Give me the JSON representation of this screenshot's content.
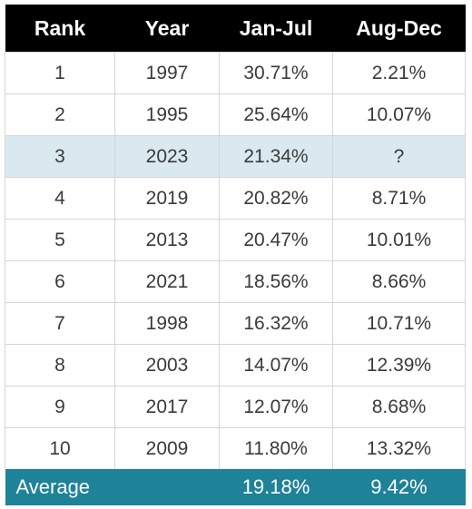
{
  "table": {
    "headers": [
      "Rank",
      "Year",
      "Jan-Jul",
      "Aug-Dec"
    ],
    "rows": [
      {
        "rank": "1",
        "year": "1997",
        "jan_jul": "30.71%",
        "aug_dec": "2.21%"
      },
      {
        "rank": "2",
        "year": "1995",
        "jan_jul": "25.64%",
        "aug_dec": "10.07%"
      },
      {
        "rank": "3",
        "year": "2023",
        "jan_jul": "21.34%",
        "aug_dec": "?"
      },
      {
        "rank": "4",
        "year": "2019",
        "jan_jul": "20.82%",
        "aug_dec": "8.71%"
      },
      {
        "rank": "5",
        "year": "2013",
        "jan_jul": "20.47%",
        "aug_dec": "10.01%"
      },
      {
        "rank": "6",
        "year": "2021",
        "jan_jul": "18.56%",
        "aug_dec": "8.66%"
      },
      {
        "rank": "7",
        "year": "1998",
        "jan_jul": "16.32%",
        "aug_dec": "10.71%"
      },
      {
        "rank": "8",
        "year": "2003",
        "jan_jul": "14.07%",
        "aug_dec": "12.39%"
      },
      {
        "rank": "9",
        "year": "2017",
        "jan_jul": "12.07%",
        "aug_dec": "8.68%"
      },
      {
        "rank": "10",
        "year": "2009",
        "jan_jul": "11.80%",
        "aug_dec": "13.32%"
      }
    ],
    "highlight_row_index": 2,
    "footer": {
      "label": "Average",
      "jan_jul": "19.18%",
      "aug_dec": "9.42%"
    }
  },
  "colors": {
    "header_bg": "#000000",
    "highlight_bg": "#d9e9ef",
    "footer_bg": "#1e8299"
  }
}
